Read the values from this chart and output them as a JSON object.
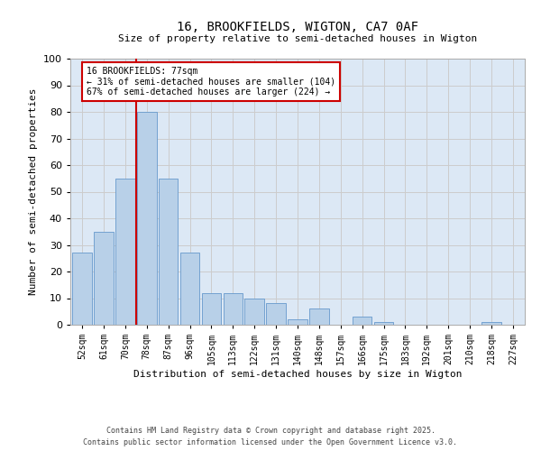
{
  "title1": "16, BROOKFIELDS, WIGTON, CA7 0AF",
  "title2": "Size of property relative to semi-detached houses in Wigton",
  "xlabel": "Distribution of semi-detached houses by size in Wigton",
  "ylabel": "Number of semi-detached properties",
  "categories": [
    "52sqm",
    "61sqm",
    "70sqm",
    "78sqm",
    "87sqm",
    "96sqm",
    "105sqm",
    "113sqm",
    "122sqm",
    "131sqm",
    "140sqm",
    "148sqm",
    "157sqm",
    "166sqm",
    "175sqm",
    "183sqm",
    "192sqm",
    "201sqm",
    "210sqm",
    "218sqm",
    "227sqm"
  ],
  "values": [
    27,
    35,
    55,
    80,
    55,
    27,
    12,
    12,
    10,
    8,
    2,
    6,
    0,
    3,
    1,
    0,
    0,
    0,
    0,
    1,
    0
  ],
  "bar_color": "#b8d0e8",
  "bar_edge_color": "#6699cc",
  "annotation_text": "16 BROOKFIELDS: 77sqm\n← 31% of semi-detached houses are smaller (104)\n67% of semi-detached houses are larger (224) →",
  "vline_color": "#cc0000",
  "vline_x": 2.5,
  "annotation_box_edge_color": "#cc0000",
  "ylim": [
    0,
    100
  ],
  "footnote": "Contains HM Land Registry data © Crown copyright and database right 2025.\nContains public sector information licensed under the Open Government Licence v3.0.",
  "grid_color": "#cccccc",
  "background_color": "#dce8f5"
}
